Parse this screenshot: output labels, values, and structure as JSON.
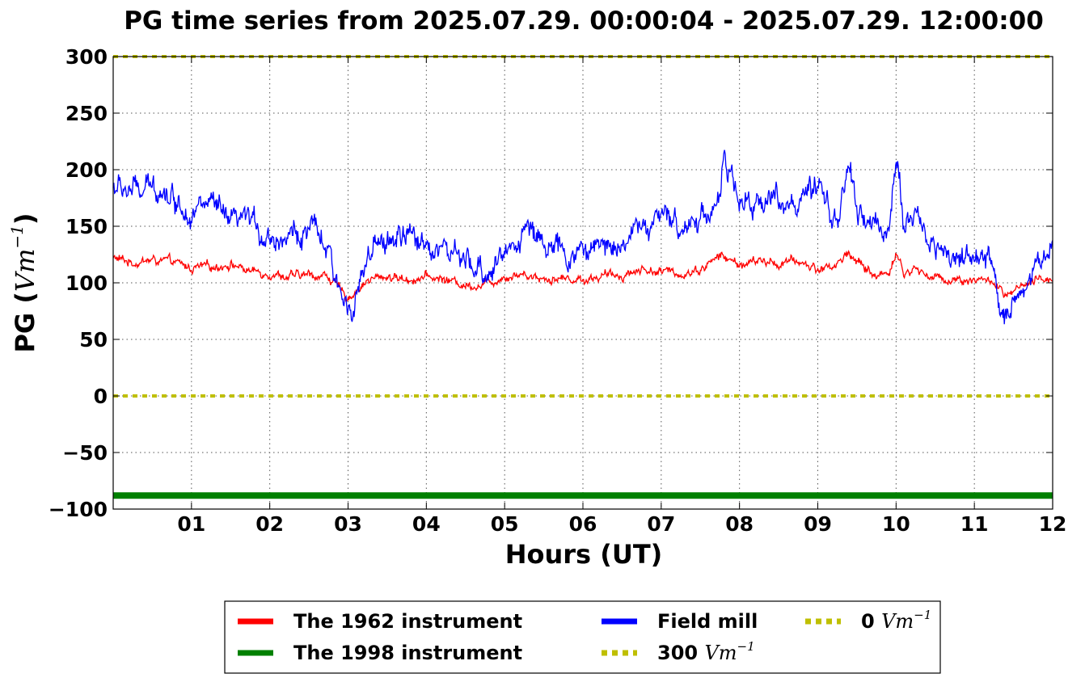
{
  "chart_data": {
    "type": "line",
    "title": "PG time series from 2025.07.29. 00:00:04 - 2025.07.29. 12:00:00",
    "xlabel": "Hours (UT)",
    "ylabel_main": "PG (",
    "ylabel_unit": "Vm",
    "ylabel_exp": "−1",
    "ylabel_close": ")",
    "xlim": [
      0,
      12
    ],
    "ylim": [
      -100,
      300
    ],
    "grid": true,
    "legend_placement": "below plot, 3 columns",
    "x_ticks": [
      1,
      2,
      3,
      4,
      5,
      6,
      7,
      8,
      9,
      10,
      11,
      12
    ],
    "x_tick_labels": [
      "01",
      "02",
      "03",
      "04",
      "05",
      "06",
      "07",
      "08",
      "09",
      "10",
      "11",
      "12"
    ],
    "y_ticks": [
      -100,
      -50,
      0,
      50,
      100,
      150,
      200,
      250,
      300
    ],
    "y_tick_labels": [
      "−100",
      "−50",
      "0",
      "50",
      "100",
      "150",
      "200",
      "250",
      "300"
    ],
    "series": [
      {
        "name": "The 1962 instrument",
        "color": "#ff0000",
        "x": [
          0,
          0.25,
          0.5,
          0.75,
          1.0,
          1.25,
          1.5,
          1.75,
          2.0,
          2.25,
          2.5,
          2.75,
          2.9,
          3.0,
          3.25,
          3.5,
          3.75,
          4.0,
          4.25,
          4.5,
          4.75,
          5.0,
          5.25,
          5.5,
          5.75,
          6.0,
          6.25,
          6.5,
          6.75,
          7.0,
          7.25,
          7.5,
          7.75,
          8.0,
          8.25,
          8.5,
          8.75,
          9.0,
          9.25,
          9.4,
          9.5,
          9.75,
          9.9,
          10.0,
          10.1,
          10.25,
          10.5,
          10.75,
          11.0,
          11.25,
          11.4,
          11.5,
          11.75,
          12.0
        ],
        "y": [
          122,
          118,
          120,
          118,
          113,
          114,
          117,
          110,
          109,
          105,
          107,
          106,
          93,
          87,
          102,
          106,
          103,
          105,
          103,
          98,
          99,
          106,
          108,
          104,
          104,
          103,
          106,
          107,
          112,
          110,
          108,
          112,
          124,
          116,
          119,
          117,
          119,
          112,
          116,
          128,
          118,
          106,
          109,
          127,
          108,
          112,
          104,
          103,
          103,
          101,
          86,
          92,
          100,
          105
        ],
        "noise": 5
      },
      {
        "name": "The 1998 instrument",
        "color": "#008000",
        "x": [
          0,
          12
        ],
        "y": [
          -88,
          -88
        ],
        "noise": 0
      },
      {
        "name": "Field mill",
        "color": "#0000ff",
        "x": [
          0,
          0.2,
          0.4,
          0.6,
          0.8,
          1.0,
          1.25,
          1.5,
          1.75,
          2.0,
          2.25,
          2.5,
          2.6,
          2.75,
          2.85,
          3.0,
          3.1,
          3.25,
          3.5,
          3.75,
          4.0,
          4.25,
          4.5,
          4.75,
          5.0,
          5.25,
          5.5,
          5.75,
          6.0,
          6.25,
          6.5,
          6.75,
          7.0,
          7.25,
          7.5,
          7.75,
          7.8,
          8.0,
          8.2,
          8.35,
          8.5,
          8.75,
          9.0,
          9.25,
          9.4,
          9.5,
          9.75,
          9.9,
          10.0,
          10.1,
          10.25,
          10.5,
          10.75,
          11.0,
          11.2,
          11.35,
          11.5,
          11.75,
          11.9,
          12.0
        ],
        "y": [
          185,
          182,
          180,
          187,
          172,
          165,
          170,
          150,
          155,
          140,
          142,
          145,
          145,
          125,
          95,
          82,
          90,
          120,
          138,
          140,
          135,
          130,
          115,
          108,
          125,
          148,
          140,
          122,
          128,
          132,
          138,
          150,
          155,
          152,
          158,
          175,
          210,
          170,
          165,
          180,
          175,
          170,
          180,
          155,
          205,
          160,
          148,
          150,
          210,
          150,
          160,
          130,
          125,
          120,
          118,
          70,
          85,
          110,
          125,
          135
        ],
        "noise": 14
      },
      {
        "name": "300 Vm⁻¹",
        "color": "#bfbf00",
        "x": [
          0,
          12
        ],
        "y": [
          300,
          300
        ],
        "noise": 0,
        "dashed": true
      },
      {
        "name": "0 Vm⁻¹",
        "color": "#bfbf00",
        "x": [
          0,
          12
        ],
        "y": [
          0,
          0
        ],
        "noise": 0,
        "dashed": true
      }
    ],
    "legend": [
      {
        "prefix": "The 1962 instrument",
        "math": "",
        "exp": "",
        "color": "#ff0000",
        "style": "solid"
      },
      {
        "prefix": "The 1998 instrument",
        "math": "",
        "exp": "",
        "color": "#008000",
        "style": "solid"
      },
      {
        "prefix": "Field mill",
        "math": "",
        "exp": "",
        "color": "#0000ff",
        "style": "solid"
      },
      {
        "prefix": "300",
        "math": "Vm",
        "exp": "−1",
        "color": "#bfbf00",
        "style": "dotted"
      },
      {
        "prefix": "0",
        "math": "Vm",
        "exp": "−1",
        "color": "#bfbf00",
        "style": "dotted"
      }
    ]
  }
}
